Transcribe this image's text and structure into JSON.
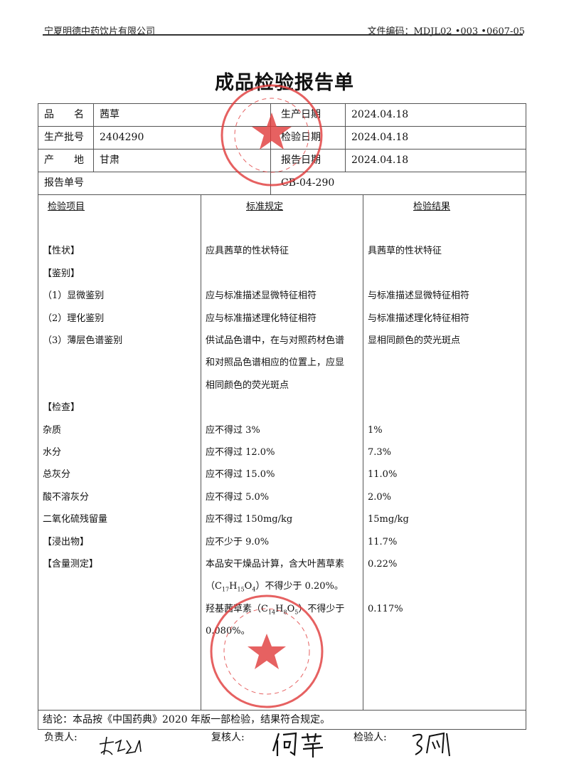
{
  "header": {
    "company": "宁夏明德中药饮片有限公司",
    "doc_code": "文件编码：MDJL02 •003 •0607-05"
  },
  "title": "成品检验报告单",
  "info": {
    "name_label": "品　　名",
    "name": "茜草",
    "batch_label": "生产批号",
    "batch": "2404290",
    "origin_label": "产　　地",
    "origin": "甘肃",
    "prod_date_label": "生产日期",
    "prod_date": "2024.04.18",
    "test_date_label": "检验日期",
    "test_date": "2024.04.18",
    "report_date_label": "报告日期",
    "report_date": "2024.04.18",
    "report_no_label": "报告单号",
    "report_no": "CB-04-290"
  },
  "columns": [
    "检验项目",
    "标准规定",
    "检验结果"
  ],
  "rows": [
    [
      "",
      "",
      ""
    ],
    [
      "【性状】",
      "应具茜草的性状特征",
      "具茜草的性状特征"
    ],
    [
      "【鉴别】",
      "",
      ""
    ],
    [
      "（1）显微鉴别",
      "应与标准描述显微特征相符",
      "与标准描述显微特征相符"
    ],
    [
      "（2）理化鉴别",
      "应与标准描述理化特征相符",
      "与标准描述理化特征相符"
    ],
    [
      "（3）薄层色谱鉴别",
      "供试品色谱中，在与对照药材色谱",
      "显相同颜色的荧光斑点"
    ],
    [
      "",
      "和对照品色谱相应的位置上，应显",
      ""
    ],
    [
      "",
      "相同颜色的荧光斑点",
      ""
    ],
    [
      "【检查】",
      "",
      ""
    ],
    [
      "杂质",
      "应不得过 3%",
      "1%"
    ],
    [
      "水分",
      "应不得过 12.0%",
      "7.3%"
    ],
    [
      "总灰分",
      "应不得过 15.0%",
      "11.0%"
    ],
    [
      "酸不溶灰分",
      "应不得过 5.0%",
      "2.0%"
    ],
    [
      "二氧化硫残留量",
      "应不得过 150mg/kg",
      "15mg/kg"
    ],
    [
      "【浸出物】",
      "应不少于 9.0%",
      "11.7%"
    ],
    [
      "【含量测定】",
      "本品安干燥品计算，含大叶茜草素",
      "0.22%"
    ],
    [
      "",
      [
        {
          "t": "（C"
        },
        {
          "s": "17"
        },
        {
          "t": "H"
        },
        {
          "s": "15"
        },
        {
          "t": "O"
        },
        {
          "s": "4"
        },
        {
          "t": "）不得少于 0.20%。"
        }
      ],
      ""
    ],
    [
      "",
      [
        {
          "t": "羟基茜草素（C"
        },
        {
          "s": "14"
        },
        {
          "t": "H"
        },
        {
          "s": "8"
        },
        {
          "t": "O"
        },
        {
          "s": "5"
        },
        {
          "t": "）不得少于"
        }
      ],
      "0.117%"
    ],
    [
      "",
      "0.080%。",
      ""
    ]
  ],
  "conclusion": "结论：本品按《中国药典》2020 年版一部检验，结果符合规定。",
  "signatures": {
    "responsible_label": "负责人:",
    "reviewer_label": "复核人:",
    "inspector_label": "检验人:"
  },
  "stamps": [
    {
      "text": "宁夏明德中药饮片有限公司",
      "bottom": "质 量 部"
    },
    {
      "text": "宁夏明德中药饮片有限公司",
      "bottom": "质检专用章"
    }
  ],
  "colors": {
    "stamp": "#e03a3a"
  }
}
